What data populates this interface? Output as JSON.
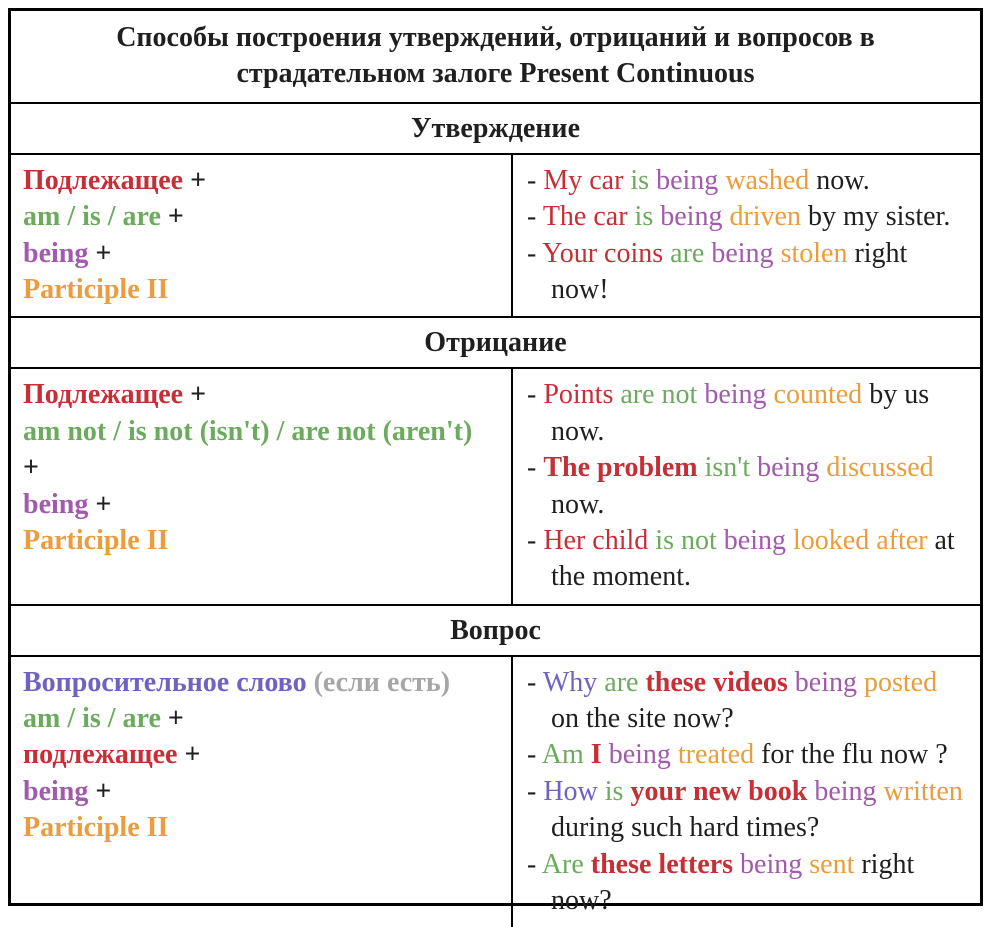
{
  "title": "Способы построения утверждений, отрицаний и вопросов в страдательном залоге Present Continuous",
  "palette": {
    "red": "#C62F35",
    "green": "#6CAB5D",
    "purple": "#A25AAD",
    "orange": "#EB9C3E",
    "violet": "#7061C2",
    "gray": "#A6A6A6",
    "black": "#1F1F1F"
  },
  "example_bullet": "-",
  "sections": [
    {
      "id": "affirmation",
      "header": "Утверждение",
      "formula_lines": [
        [
          {
            "text": "Подлежащее",
            "color": "red"
          },
          {
            "text": "+",
            "color": "black"
          }
        ],
        [
          {
            "text": "am / is / are",
            "color": "green"
          },
          {
            "text": "+",
            "color": "black"
          }
        ],
        [
          {
            "text": "being",
            "color": "purple"
          },
          {
            "text": "+",
            "color": "black"
          }
        ],
        [
          {
            "text": "Participle II",
            "color": "orange"
          }
        ]
      ],
      "examples": [
        [
          {
            "text": "My car",
            "color": "red"
          },
          {
            "text": "is",
            "color": "green"
          },
          {
            "text": "being",
            "color": "purple"
          },
          {
            "text": "washed",
            "color": "orange"
          },
          {
            "text": "now.",
            "color": "black"
          }
        ],
        [
          {
            "text": "The car",
            "color": "red"
          },
          {
            "text": "is",
            "color": "green"
          },
          {
            "text": "being",
            "color": "purple"
          },
          {
            "text": "driven",
            "color": "orange"
          },
          {
            "text": "by my sister.",
            "color": "black"
          }
        ],
        [
          {
            "text": "Your coins",
            "color": "red"
          },
          {
            "text": "are",
            "color": "green"
          },
          {
            "text": "being",
            "color": "purple"
          },
          {
            "text": "stolen",
            "color": "orange"
          },
          {
            "text": "right now!",
            "color": "black"
          }
        ]
      ]
    },
    {
      "id": "negation",
      "header": "Отрицание",
      "formula_lines": [
        [
          {
            "text": "Подлежащее",
            "color": "red"
          },
          {
            "text": "+",
            "color": "black"
          }
        ],
        [
          {
            "text": "am not / is not (isn't) / are not (aren't)",
            "color": "green"
          }
        ],
        [
          {
            "text": "+",
            "color": "black"
          }
        ],
        [
          {
            "text": "being",
            "color": "purple"
          },
          {
            "text": "+",
            "color": "black"
          }
        ],
        [
          {
            "text": "Participle II",
            "color": "orange"
          }
        ]
      ],
      "examples": [
        [
          {
            "text": "Points",
            "color": "red"
          },
          {
            "text": "are not",
            "color": "green"
          },
          {
            "text": "being",
            "color": "purple"
          },
          {
            "text": "counted",
            "color": "orange"
          },
          {
            "text": "by us now.",
            "color": "black"
          }
        ],
        [
          {
            "text": "The problem",
            "color": "red",
            "bold": true
          },
          {
            "text": "isn't",
            "color": "green"
          },
          {
            "text": "being",
            "color": "purple"
          },
          {
            "text": "discussed",
            "color": "orange"
          },
          {
            "text": "now.",
            "color": "black"
          }
        ],
        [
          {
            "text": "Her child",
            "color": "red"
          },
          {
            "text": "is not",
            "color": "green"
          },
          {
            "text": "being",
            "color": "purple"
          },
          {
            "text": "looked after",
            "color": "orange"
          },
          {
            "text": "at the moment.",
            "color": "black"
          }
        ]
      ]
    },
    {
      "id": "question",
      "header": "Вопрос",
      "formula_lines": [
        [
          {
            "text": "Вопросительное слово",
            "color": "violet"
          },
          {
            "text": "(если есть)",
            "color": "gray"
          }
        ],
        [
          {
            "text": "am / is / are",
            "color": "green"
          },
          {
            "text": "+",
            "color": "black"
          }
        ],
        [
          {
            "text": "подлежащее",
            "color": "red"
          },
          {
            "text": "+",
            "color": "black"
          }
        ],
        [
          {
            "text": "being",
            "color": "purple"
          },
          {
            "text": "+",
            "color": "black"
          }
        ],
        [
          {
            "text": "Participle II",
            "color": "orange"
          }
        ]
      ],
      "examples": [
        [
          {
            "text": "Why",
            "color": "violet"
          },
          {
            "text": "are",
            "color": "green"
          },
          {
            "text": "these videos",
            "color": "red",
            "bold": true
          },
          {
            "text": "being",
            "color": "purple"
          },
          {
            "text": "posted",
            "color": "orange"
          },
          {
            "text": "on the site now?",
            "color": "black"
          }
        ],
        [
          {
            "text": "Am",
            "color": "green"
          },
          {
            "text": "I",
            "color": "red",
            "bold": true
          },
          {
            "text": "being",
            "color": "purple"
          },
          {
            "text": "treated",
            "color": "orange"
          },
          {
            "text": "for the flu now ?",
            "color": "black"
          }
        ],
        [
          {
            "text": "How",
            "color": "violet"
          },
          {
            "text": "is",
            "color": "green"
          },
          {
            "text": "your new book",
            "color": "red",
            "bold": true
          },
          {
            "text": "being",
            "color": "purple"
          },
          {
            "text": "written",
            "color": "orange"
          },
          {
            "text": "during such hard times?",
            "color": "black"
          }
        ],
        [
          {
            "text": "Are",
            "color": "green"
          },
          {
            "text": "these letters",
            "color": "red",
            "bold": true
          },
          {
            "text": "being",
            "color": "purple"
          },
          {
            "text": "sent",
            "color": "orange"
          },
          {
            "text": "right now?",
            "color": "black"
          }
        ]
      ]
    }
  ]
}
